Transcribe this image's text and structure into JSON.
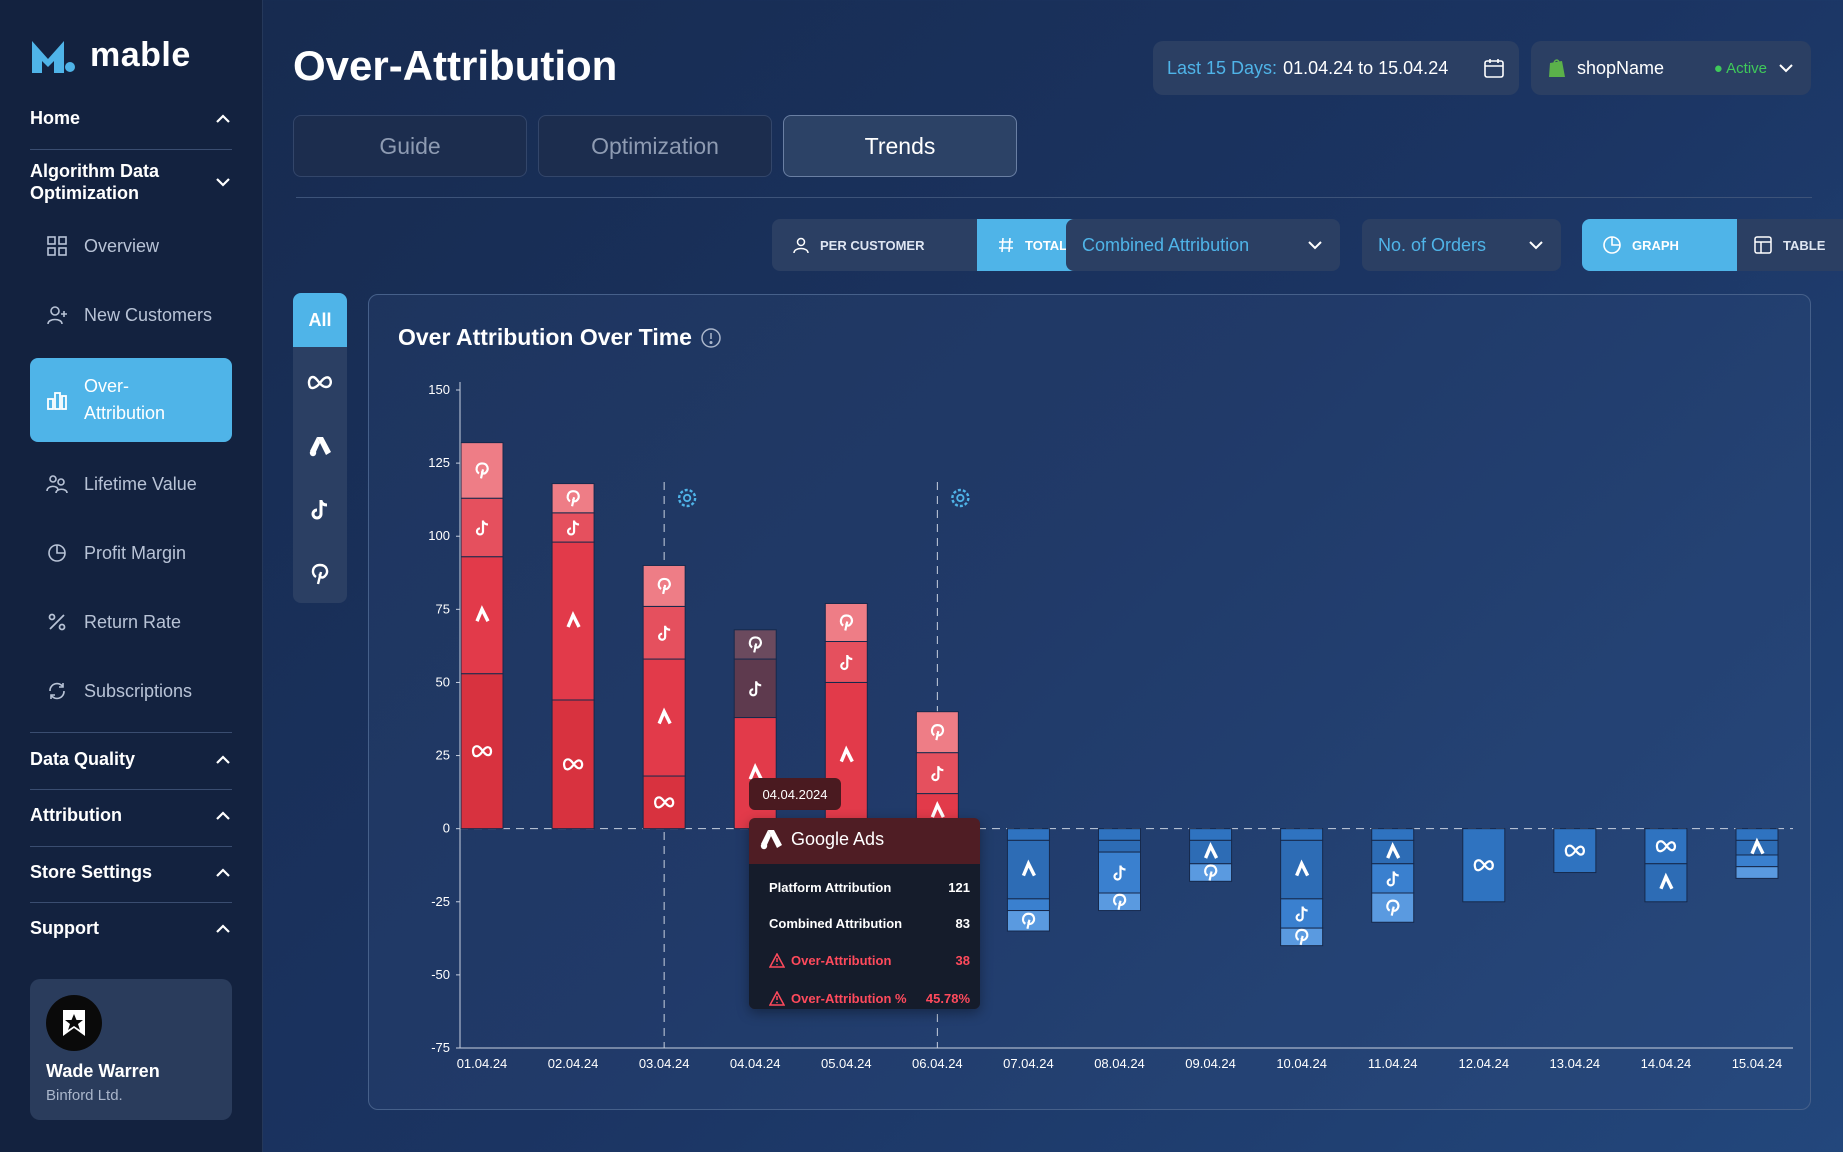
{
  "app": {
    "brand": "mable"
  },
  "sidebar": {
    "home": "Home",
    "algo": "Algorithm Data Optimization",
    "items": [
      {
        "label": "Overview",
        "icon": "grid-icon"
      },
      {
        "label": "New Customers",
        "icon": "user-plus-icon"
      },
      {
        "label": "Over-Attribution",
        "icon": "bar-chart-icon",
        "active": true
      },
      {
        "label": "Lifetime Value",
        "icon": "users-icon"
      },
      {
        "label": "Profit Margin",
        "icon": "pie-chart-icon"
      },
      {
        "label": "Return Rate",
        "icon": "percent-icon"
      },
      {
        "label": "Subscriptions",
        "icon": "refresh-icon"
      }
    ],
    "sections": [
      "Data Quality",
      "Attribution",
      "Store Settings",
      "Support"
    ],
    "user": {
      "name": "Wade Warren",
      "company": "Binford Ltd."
    }
  },
  "header": {
    "title": "Over-Attribution",
    "date_label": "Last 15 Days:",
    "date_value": "01.04.24 to 15.04.24",
    "shop_name": "shopName",
    "shop_status": "● Active"
  },
  "tabs": [
    "Guide",
    "Optimization",
    "Trends"
  ],
  "controls": {
    "per_customer": "PER CUSTOMER",
    "total": "TOTAL",
    "attribution_select": "Combined Attribution",
    "metric_select": "No. of Orders",
    "graph": "GRAPH",
    "table": "TABLE"
  },
  "filters": {
    "all": "All"
  },
  "colors": {
    "accent": "#4fb4e8",
    "positive": "#e0364a",
    "negative": "#2f78c8",
    "active_status": "#3fca5a"
  },
  "chart_data": {
    "type": "bar",
    "stacked": true,
    "title": "Over Attribution Over Time",
    "ylim": [
      -75,
      150
    ],
    "yticks": [
      150,
      125,
      100,
      75,
      50,
      25,
      0,
      -25,
      -50,
      -75
    ],
    "categories": [
      "01.04.24",
      "02.04.24",
      "03.04.24",
      "04.04.24",
      "05.04.24",
      "06.04.24",
      "07.04.24",
      "08.04.24",
      "09.04.24",
      "10.04.24",
      "11.04.24",
      "12.04.24",
      "13.04.24",
      "14.04.24",
      "15.04.24"
    ],
    "series": [
      {
        "name": "Meta",
        "values": [
          53,
          44,
          18,
          0,
          0,
          0,
          -4,
          -4,
          -4,
          -4,
          -4,
          -25,
          -15,
          -12,
          -4
        ]
      },
      {
        "name": "Google Ads",
        "values": [
          40,
          54,
          40,
          38,
          50,
          12,
          -20,
          -4,
          -8,
          -20,
          -8,
          0,
          0,
          -13,
          -5
        ]
      },
      {
        "name": "TikTok",
        "values": [
          20,
          10,
          18,
          20,
          14,
          14,
          -4,
          -14,
          0,
          -10,
          -10,
          0,
          0,
          0,
          -4
        ]
      },
      {
        "name": "Pinterest",
        "values": [
          19,
          10,
          14,
          10,
          13,
          14,
          -7,
          -6,
          -6,
          -6,
          -10,
          0,
          0,
          0,
          -4
        ]
      }
    ],
    "tooltip": {
      "date": "04.04.2024",
      "channel": "Google Ads",
      "rows": [
        {
          "label": "Platform Attribution",
          "value": "121"
        },
        {
          "label": "Combined Attribution",
          "value": "83"
        },
        {
          "label": "Over-Attribution",
          "value": "38"
        },
        {
          "label": "Over-Attribution %",
          "value": "45.78%"
        }
      ]
    }
  }
}
